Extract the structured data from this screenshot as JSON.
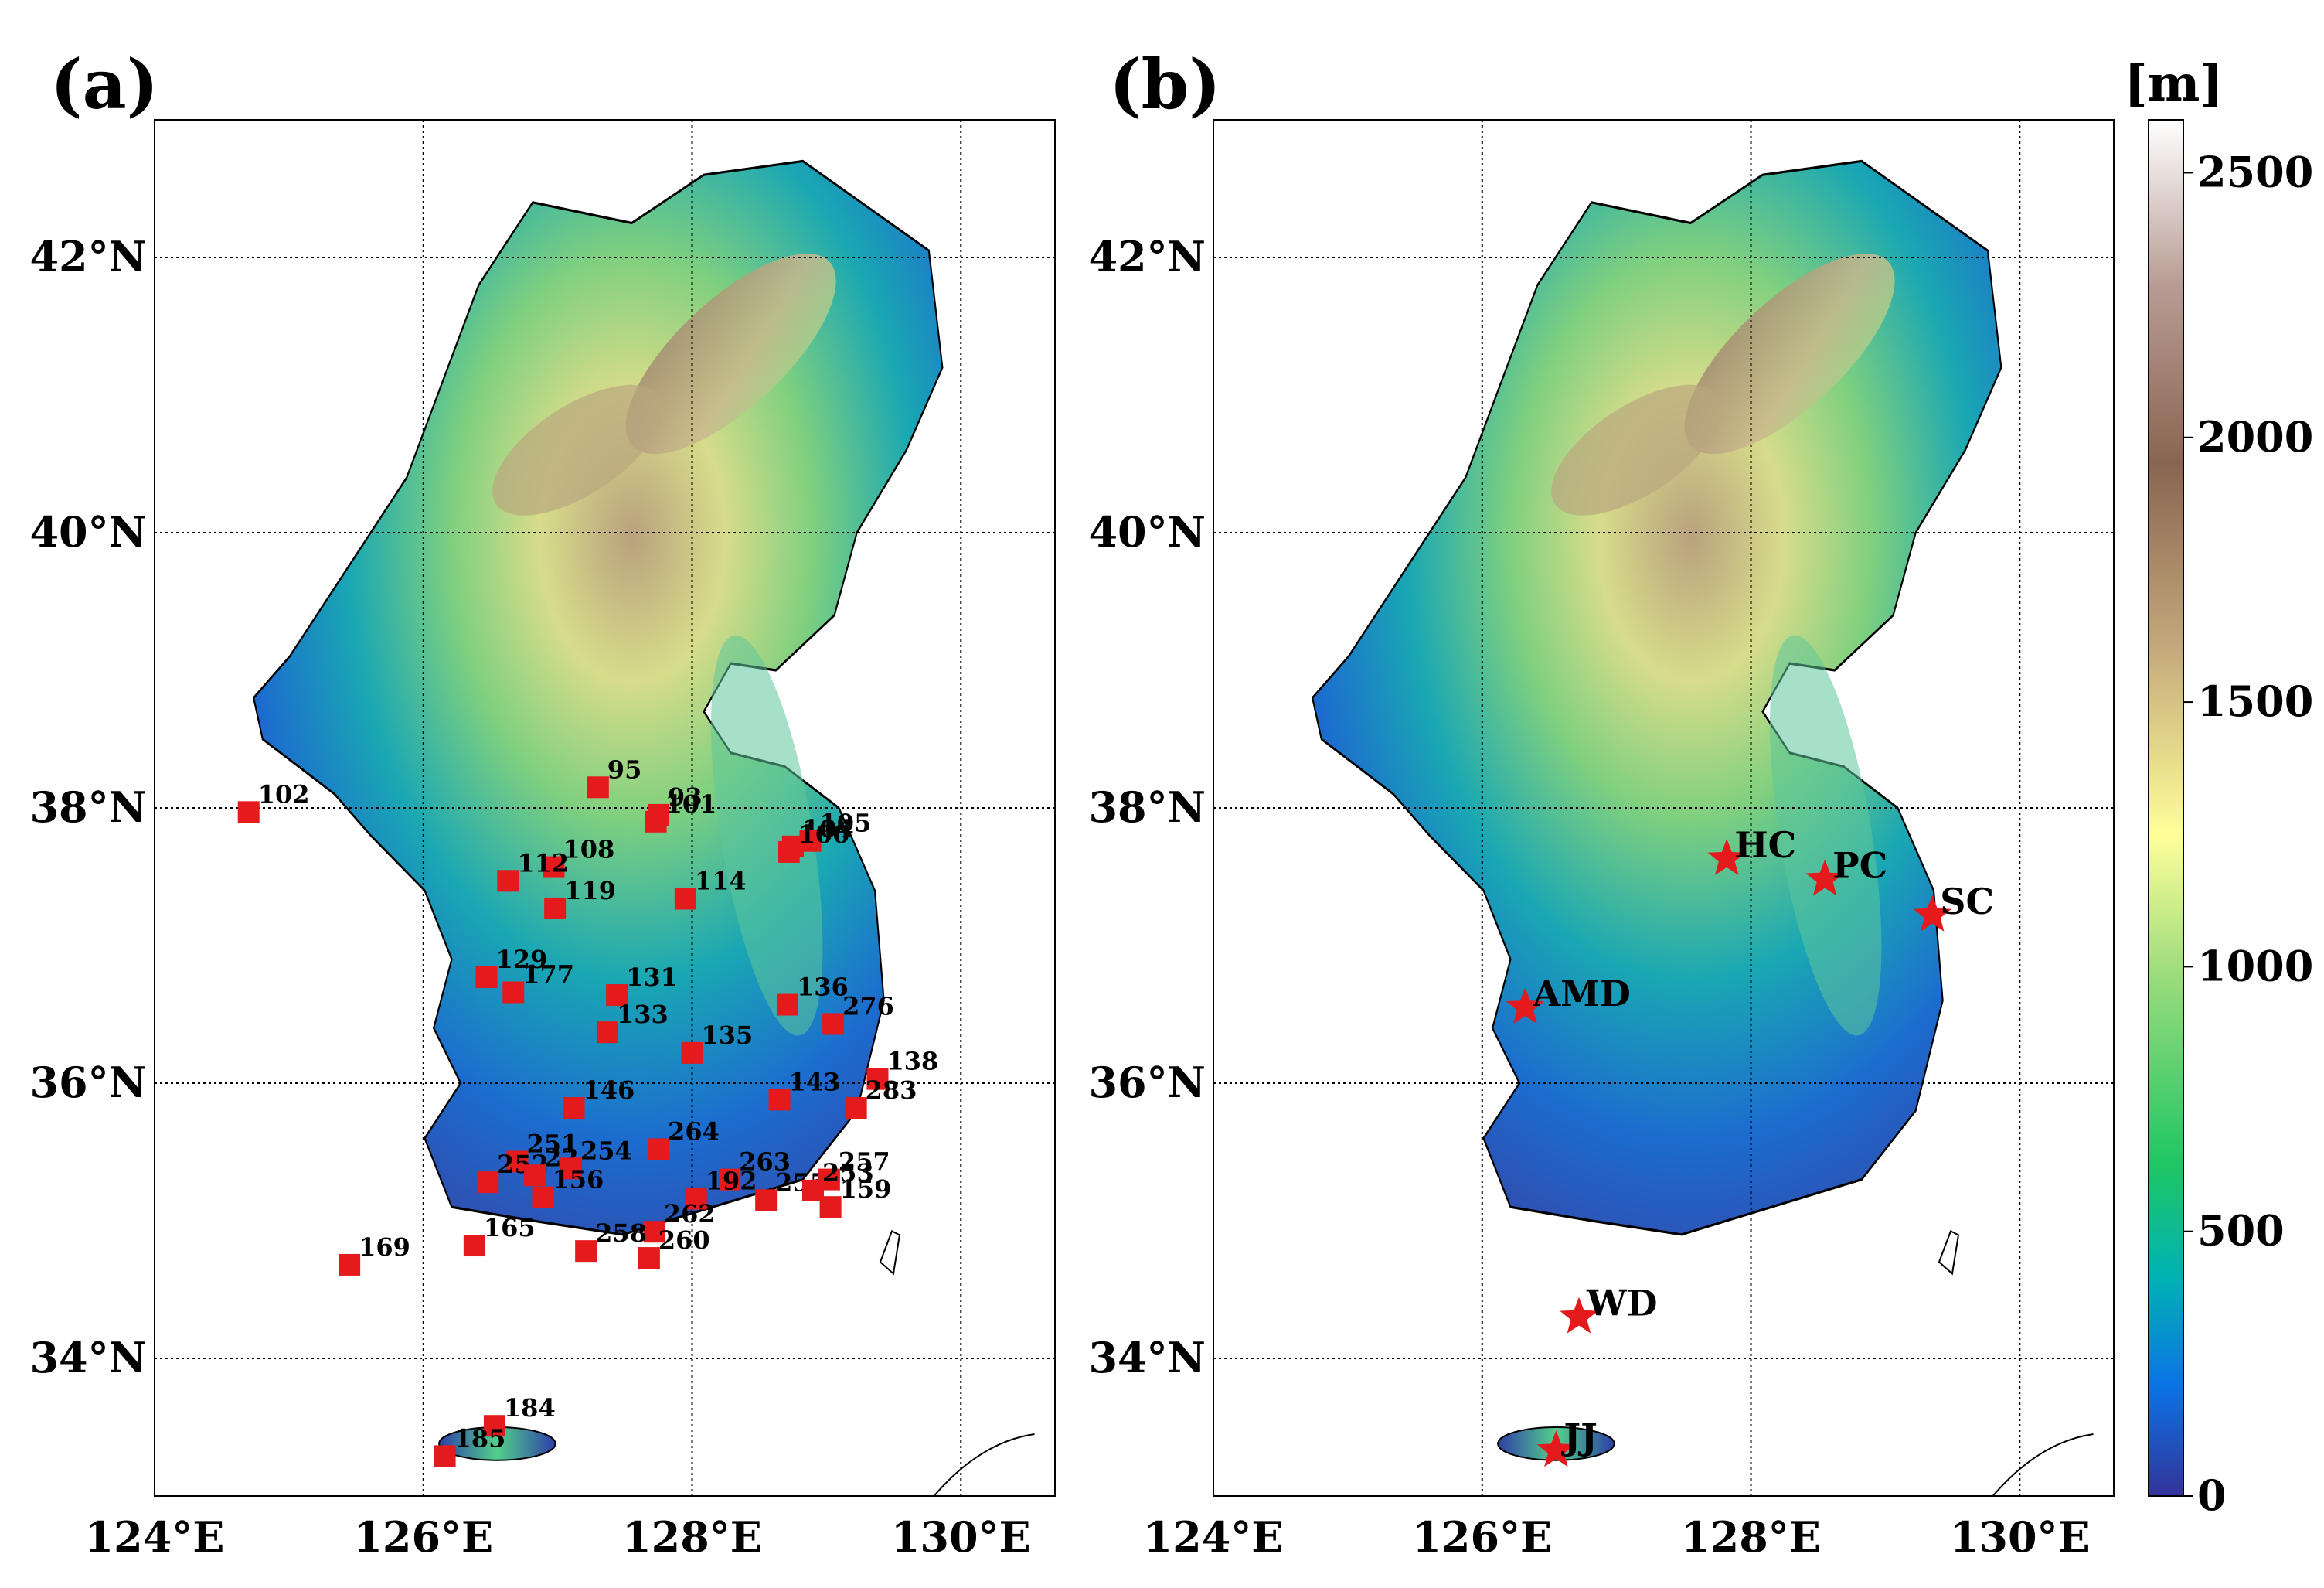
{
  "panels": [
    {
      "id": "a",
      "label": "(a)",
      "lon_range": [
        124.0,
        130.7
      ],
      "lat_range": [
        33.0,
        43.0
      ],
      "lon_ticks": [
        124,
        126,
        128,
        130
      ],
      "lat_ticks": [
        34,
        36,
        38,
        40,
        42
      ],
      "lon_tick_labels": [
        "124°E",
        "126°E",
        "128°E",
        "130°E"
      ],
      "lat_tick_labels": [
        "34°N",
        "36°N",
        "38°N",
        "40°N",
        "42°N"
      ],
      "marker": "square",
      "marker_color": "#e41a1c",
      "stations": [
        {
          "label": "95",
          "lon": 127.3,
          "lat": 38.15
        },
        {
          "label": "93",
          "lon": 127.75,
          "lat": 37.95
        },
        {
          "label": "101",
          "lon": 127.73,
          "lat": 37.9
        },
        {
          "label": "102",
          "lon": 124.7,
          "lat": 37.97
        },
        {
          "label": "104",
          "lon": 128.75,
          "lat": 37.72
        },
        {
          "label": "105",
          "lon": 128.88,
          "lat": 37.76
        },
        {
          "label": "100",
          "lon": 128.72,
          "lat": 37.68
        },
        {
          "label": "108",
          "lon": 126.97,
          "lat": 37.57
        },
        {
          "label": "112",
          "lon": 126.63,
          "lat": 37.47
        },
        {
          "label": "119",
          "lon": 126.98,
          "lat": 37.27
        },
        {
          "label": "114",
          "lon": 127.95,
          "lat": 37.34
        },
        {
          "label": "129",
          "lon": 126.47,
          "lat": 36.77
        },
        {
          "label": "177",
          "lon": 126.67,
          "lat": 36.66
        },
        {
          "label": "131",
          "lon": 127.44,
          "lat": 36.64
        },
        {
          "label": "133",
          "lon": 127.37,
          "lat": 36.37
        },
        {
          "label": "136",
          "lon": 128.71,
          "lat": 36.57
        },
        {
          "label": "276",
          "lon": 129.05,
          "lat": 36.43
        },
        {
          "label": "135",
          "lon": 128.0,
          "lat": 36.22
        },
        {
          "label": "138",
          "lon": 129.38,
          "lat": 36.03
        },
        {
          "label": "146",
          "lon": 127.12,
          "lat": 35.82
        },
        {
          "label": "143",
          "lon": 128.65,
          "lat": 35.88
        },
        {
          "label": "283",
          "lon": 129.22,
          "lat": 35.82
        },
        {
          "label": "264",
          "lon": 127.75,
          "lat": 35.52
        },
        {
          "label": "251",
          "lon": 126.7,
          "lat": 35.43
        },
        {
          "label": "252",
          "lon": 126.48,
          "lat": 35.28
        },
        {
          "label": "22",
          "lon": 126.83,
          "lat": 35.33
        },
        {
          "label": "254",
          "lon": 127.1,
          "lat": 35.38
        },
        {
          "label": "156",
          "lon": 126.89,
          "lat": 35.17
        },
        {
          "label": "263",
          "lon": 128.28,
          "lat": 35.3
        },
        {
          "label": "192",
          "lon": 128.03,
          "lat": 35.16
        },
        {
          "label": "255",
          "lon": 128.55,
          "lat": 35.15
        },
        {
          "label": "257",
          "lon": 129.02,
          "lat": 35.3
        },
        {
          "label": "253",
          "lon": 128.9,
          "lat": 35.22
        },
        {
          "label": "159",
          "lon": 129.03,
          "lat": 35.1
        },
        {
          "label": "262",
          "lon": 127.72,
          "lat": 34.92
        },
        {
          "label": "260",
          "lon": 127.68,
          "lat": 34.73
        },
        {
          "label": "258",
          "lon": 127.21,
          "lat": 34.78
        },
        {
          "label": "165",
          "lon": 126.38,
          "lat": 34.82
        },
        {
          "label": "169",
          "lon": 125.45,
          "lat": 34.68
        },
        {
          "label": "184",
          "lon": 126.53,
          "lat": 33.51
        },
        {
          "label": "185",
          "lon": 126.16,
          "lat": 33.29
        }
      ]
    },
    {
      "id": "b",
      "label": "(b)",
      "lon_range": [
        124.0,
        130.7
      ],
      "lat_range": [
        33.0,
        43.0
      ],
      "lon_ticks": [
        124,
        126,
        128,
        130
      ],
      "lat_ticks": [
        34,
        36,
        38,
        40,
        42
      ],
      "lon_tick_labels": [
        "124°E",
        "126°E",
        "128°E",
        "130°E"
      ],
      "lat_tick_labels": [
        "34°N",
        "36°N",
        "38°N",
        "40°N",
        "42°N"
      ],
      "marker": "star",
      "marker_color": "#e41a1c",
      "stations": [
        {
          "label": "HC",
          "lon": 127.82,
          "lat": 37.63
        },
        {
          "label": "PC",
          "lon": 128.55,
          "lat": 37.48
        },
        {
          "label": "SC",
          "lon": 129.35,
          "lat": 37.22
        },
        {
          "label": "AMD",
          "lon": 126.32,
          "lat": 36.55
        },
        {
          "label": "WD",
          "lon": 126.72,
          "lat": 34.3
        },
        {
          "label": "JJ",
          "lon": 126.55,
          "lat": 33.33
        }
      ]
    }
  ],
  "colorbar": {
    "title": "[m]",
    "min": 0,
    "max": 2600,
    "tick_values": [
      0,
      500,
      1000,
      1500,
      2000,
      2500
    ],
    "tick_labels": [
      "0",
      "500",
      "1000",
      "1500",
      "2000",
      "2500"
    ],
    "colormap": "terrain",
    "stops": [
      "#333399",
      "#0b73e6",
      "#00b3b3",
      "#1ec664",
      "#9ddc7d",
      "#ffff99",
      "#c2a77a",
      "#8a6451",
      "#b89c94",
      "#ffffff"
    ]
  },
  "colors": {
    "sea": "#ffffff",
    "coastline": "#000000",
    "gridline": "#000000"
  }
}
